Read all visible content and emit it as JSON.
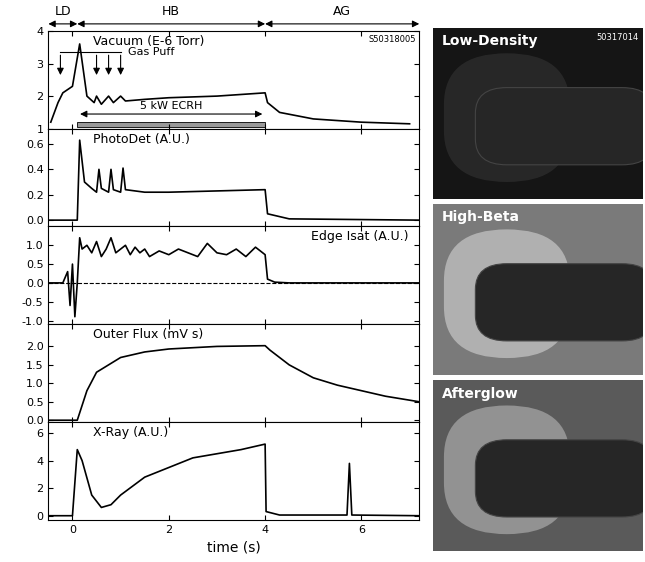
{
  "chart_data": [
    {
      "type": "line",
      "title": "Vacuum (E-6 Torr)",
      "shot": "S50318005",
      "x": [
        -0.45,
        -0.3,
        -0.2,
        0.0,
        0.15,
        0.3,
        0.45,
        0.5,
        0.6,
        0.75,
        0.85,
        1.0,
        1.1,
        1.5,
        2.0,
        3.0,
        4.0,
        4.05,
        4.3,
        5.0,
        6.0,
        7.0
      ],
      "values": [
        1.2,
        1.8,
        2.1,
        2.3,
        3.6,
        2.0,
        1.8,
        2.0,
        1.75,
        2.0,
        1.8,
        2.0,
        1.85,
        1.9,
        1.95,
        2.0,
        2.1,
        1.8,
        1.5,
        1.3,
        1.2,
        1.15
      ],
      "gas_puff": {
        "label": "Gas Puff",
        "times": [
          -0.25,
          0.5,
          0.75,
          1.0
        ]
      },
      "ecrh": {
        "label": "5 kW ECRH",
        "start": 0.1,
        "end": 4.0
      },
      "color": "#000000",
      "xlim": [
        -0.5,
        7.2
      ],
      "xticks": [
        0,
        2,
        4,
        6
      ],
      "ylim": [
        1,
        4
      ],
      "yticks": [
        1,
        2,
        3,
        4
      ],
      "tick_labels": "y"
    },
    {
      "type": "line",
      "title": "PhotoDet (A.U.)",
      "x": [
        -0.5,
        0.1,
        0.15,
        0.25,
        0.4,
        0.5,
        0.55,
        0.6,
        0.75,
        0.8,
        0.85,
        1.0,
        1.05,
        1.1,
        1.5,
        2.0,
        3.0,
        4.0,
        4.05,
        4.5,
        7.2
      ],
      "values": [
        0,
        0,
        0.63,
        0.3,
        0.25,
        0.22,
        0.4,
        0.25,
        0.22,
        0.4,
        0.24,
        0.22,
        0.41,
        0.24,
        0.22,
        0.22,
        0.23,
        0.24,
        0.05,
        0.01,
        0
      ],
      "color": "#000000",
      "xlim": [
        -0.5,
        7.2
      ],
      "xticks": [
        0,
        2,
        4,
        6
      ],
      "ylim": [
        -0.05,
        0.72
      ],
      "yticks": [
        0.0,
        0.2,
        0.4,
        0.6
      ],
      "tick_labels": "y"
    },
    {
      "type": "line",
      "title": "Edge Isat (A.U.)",
      "x": [
        -0.5,
        -0.2,
        -0.1,
        -0.05,
        0,
        0.05,
        0.1,
        0.15,
        0.2,
        0.3,
        0.4,
        0.5,
        0.6,
        0.7,
        0.8,
        0.9,
        1.0,
        1.1,
        1.2,
        1.3,
        1.4,
        1.5,
        1.6,
        1.8,
        2.0,
        2.2,
        2.4,
        2.6,
        2.8,
        3.0,
        3.2,
        3.4,
        3.6,
        3.8,
        3.95,
        4.0,
        4.05,
        4.2,
        4.5,
        5,
        6,
        7.2
      ],
      "values": [
        0,
        0,
        0.3,
        -0.6,
        0.5,
        -0.9,
        0.0,
        1.2,
        0.9,
        1.0,
        0.8,
        1.1,
        0.7,
        0.9,
        1.2,
        0.8,
        0.9,
        1.0,
        0.75,
        0.95,
        0.8,
        0.9,
        0.7,
        0.85,
        0.75,
        0.9,
        0.8,
        0.7,
        1.05,
        0.8,
        0.75,
        0.9,
        0.7,
        0.95,
        0.8,
        0.75,
        0.1,
        0.02,
        0.0,
        0.0,
        0.0,
        0.0
      ],
      "reference_y": 0.0,
      "color": "#000000",
      "xlim": [
        -0.5,
        7.2
      ],
      "xticks": [
        0,
        2,
        4,
        6
      ],
      "ylim": [
        -1.1,
        1.5
      ],
      "yticks": [
        -1.0,
        -0.5,
        0.0,
        0.5,
        1.0
      ],
      "tick_labels": "y"
    },
    {
      "type": "line",
      "title": "Outer Flux (mV s)",
      "x": [
        -0.5,
        0.1,
        0.3,
        0.5,
        1,
        1.5,
        2,
        3,
        4,
        4.1,
        4.5,
        5,
        5.5,
        6,
        6.5,
        7.2
      ],
      "values": [
        0,
        0,
        0.8,
        1.3,
        1.7,
        1.85,
        1.93,
        2.0,
        2.02,
        1.9,
        1.5,
        1.15,
        0.95,
        0.8,
        0.65,
        0.5
      ],
      "color": "#000000",
      "xlim": [
        -0.5,
        7.2
      ],
      "xticks": [
        0,
        2,
        4,
        6
      ],
      "ylim": [
        -0.05,
        2.6
      ],
      "yticks": [
        0.0,
        0.5,
        1.0,
        1.5,
        2.0
      ],
      "tick_labels": "y"
    },
    {
      "type": "line",
      "title": "X-Ray (A.U.)",
      "x_label": "time (s)",
      "x": [
        -0.5,
        0.0,
        0.1,
        0.2,
        0.4,
        0.6,
        0.8,
        1.0,
        1.5,
        2.0,
        2.5,
        3.0,
        3.5,
        4.0,
        4.02,
        4.3,
        5.7,
        5.75,
        5.8,
        7.2
      ],
      "values": [
        0,
        0,
        4.8,
        4.0,
        1.5,
        0.6,
        0.8,
        1.5,
        2.8,
        3.5,
        4.2,
        4.5,
        4.8,
        5.2,
        0.3,
        0.05,
        0.05,
        3.8,
        0.05,
        0
      ],
      "color": "#000000",
      "xlim": [
        -0.5,
        7.2
      ],
      "xticks": [
        0,
        2,
        4,
        6
      ],
      "ylim": [
        -0.3,
        6.8
      ],
      "yticks": [
        0,
        2,
        4,
        6
      ]
    }
  ],
  "phases": [
    {
      "label": "LD",
      "start": -0.5,
      "end": 0.1
    },
    {
      "label": "HB",
      "start": 0.1,
      "end": 4.0
    },
    {
      "label": "AG",
      "start": 4.0,
      "end": 7.2
    }
  ],
  "images": {
    "shot": "50317014",
    "panels": [
      "Low-Density",
      "High-Beta",
      "Afterglow"
    ]
  }
}
